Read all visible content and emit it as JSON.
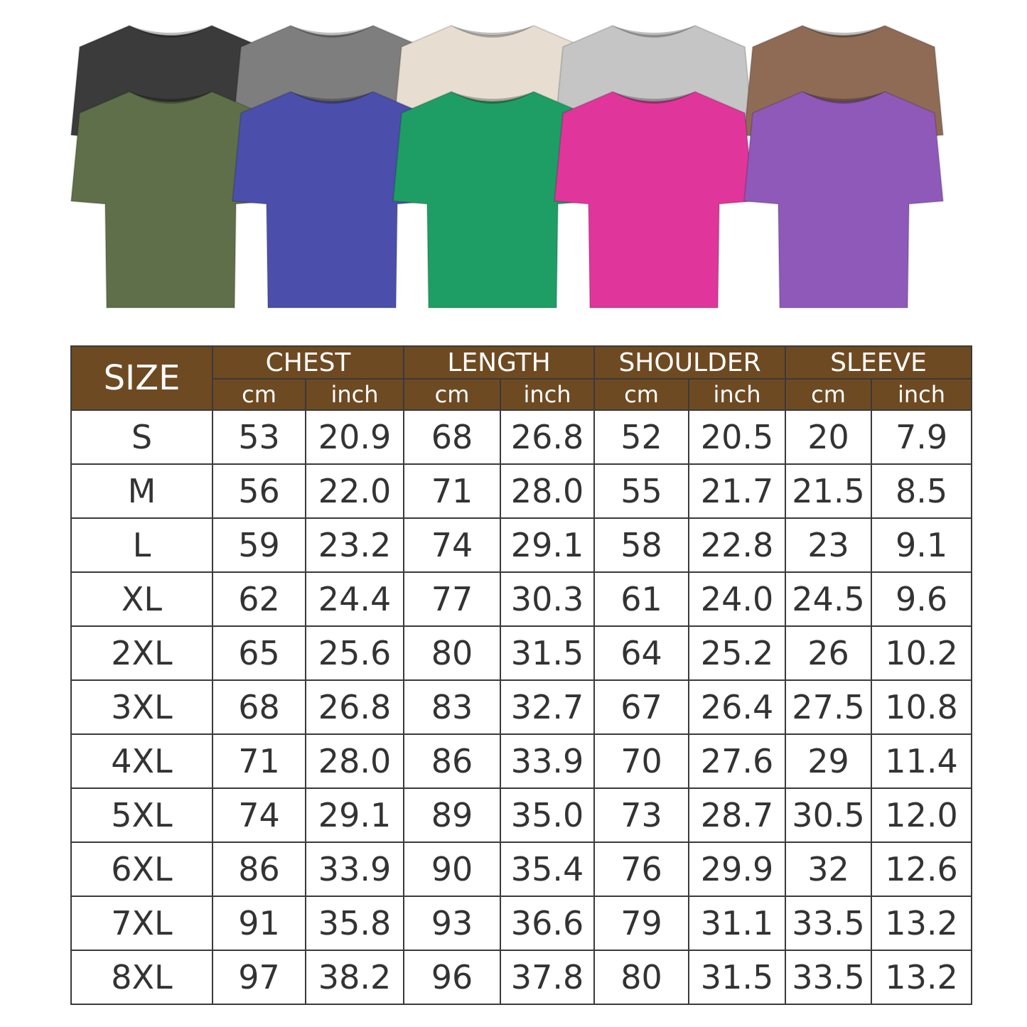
{
  "shirt_colors": {
    "back_row": [
      "#3b3b3b",
      "#7e7e7e",
      "#e7ded1",
      "#c5c5c5",
      "#8f6b56"
    ],
    "front_row": [
      "#5f6f49",
      "#4b4fab",
      "#1e9e65",
      "#e0369b",
      "#8f59b9"
    ]
  },
  "header_color": "#6e4a22",
  "table": {
    "size_label": "SIZE",
    "groups": [
      "CHEST",
      "LENGTH",
      "SHOULDER",
      "SLEEVE"
    ],
    "units": [
      "cm",
      "inch",
      "cm",
      "inch",
      "cm",
      "inch",
      "cm",
      "inch"
    ],
    "rows": [
      [
        "S",
        "53",
        "20.9",
        "68",
        "26.8",
        "52",
        "20.5",
        "20",
        "7.9"
      ],
      [
        "M",
        "56",
        "22.0",
        "71",
        "28.0",
        "55",
        "21.7",
        "21.5",
        "8.5"
      ],
      [
        "L",
        "59",
        "23.2",
        "74",
        "29.1",
        "58",
        "22.8",
        "23",
        "9.1"
      ],
      [
        "XL",
        "62",
        "24.4",
        "77",
        "30.3",
        "61",
        "24.0",
        "24.5",
        "9.6"
      ],
      [
        "2XL",
        "65",
        "25.6",
        "80",
        "31.5",
        "64",
        "25.2",
        "26",
        "10.2"
      ],
      [
        "3XL",
        "68",
        "26.8",
        "83",
        "32.7",
        "67",
        "26.4",
        "27.5",
        "10.8"
      ],
      [
        "4XL",
        "71",
        "28.0",
        "86",
        "33.9",
        "70",
        "27.6",
        "29",
        "11.4"
      ],
      [
        "5XL",
        "74",
        "29.1",
        "89",
        "35.0",
        "73",
        "28.7",
        "30.5",
        "12.0"
      ],
      [
        "6XL",
        "86",
        "33.9",
        "90",
        "35.4",
        "76",
        "29.9",
        "32",
        "12.6"
      ],
      [
        "7XL",
        "91",
        "35.8",
        "93",
        "36.6",
        "79",
        "31.1",
        "33.5",
        "13.2"
      ],
      [
        "8XL",
        "97",
        "38.2",
        "96",
        "37.8",
        "80",
        "31.5",
        "33.5",
        "13.2"
      ]
    ]
  }
}
